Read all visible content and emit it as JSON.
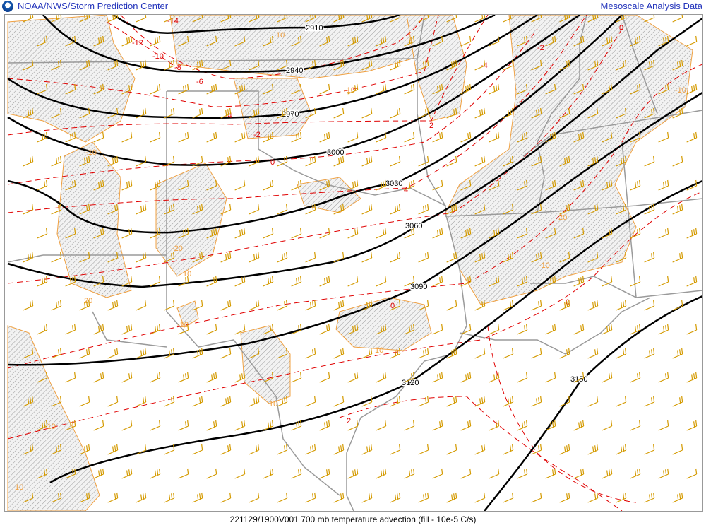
{
  "header": {
    "logo": "NOAA",
    "title": "NOAA/NWS/Storm Prediction Center",
    "right_link": "Mesoscale Analysis Data"
  },
  "footer": {
    "caption": "221129/1900V001 700 mb temperature advection (fill - 10e-5 C/s)"
  },
  "colors": {
    "height": "#000000",
    "temperature": "#e00000",
    "advection": "#f0a040",
    "barbs": "#d49a00",
    "borders": "#999999",
    "link": "#2233bb"
  },
  "height_labels": [
    "2910",
    "2940",
    "2970",
    "3000",
    "3030",
    "3060",
    "3090",
    "3120",
    "3150"
  ],
  "temperature_labels": [
    "-14",
    "-12",
    "-10",
    "-8",
    "-6",
    "-4",
    "-2",
    "0",
    "2",
    "4",
    "-4",
    "-2",
    "0",
    "0",
    "2",
    "0"
  ],
  "advection_labels": [
    "10",
    "-10",
    "-10",
    "20",
    "-20",
    "10",
    "-10",
    "10",
    "10",
    "-10",
    "10",
    "-10",
    "20",
    "-10"
  ]
}
